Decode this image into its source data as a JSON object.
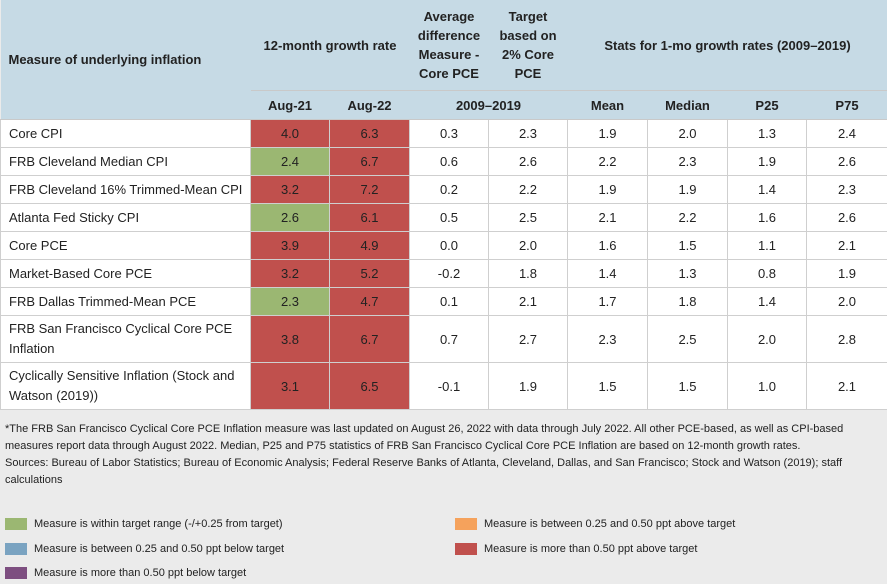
{
  "table": {
    "header": {
      "measure": "Measure of underlying inflation",
      "growth": "12-month growth rate",
      "avg_diff": "Average difference Measure - Core PCE",
      "target": "Target based on 2% Core PCE",
      "stats": "Stats for 1-mo growth rates (2009–2019)",
      "sub": [
        "Aug-21",
        "Aug-22",
        "2009–2019",
        "Mean",
        "Median",
        "P25",
        "P75"
      ]
    },
    "rows": [
      {
        "label": "Core CPI",
        "cells": [
          "4.0",
          "6.3",
          "0.3",
          "2.3",
          "1.9",
          "2.0",
          "1.3",
          "2.4"
        ],
        "colors": [
          "#c0504d",
          "#c0504d"
        ]
      },
      {
        "label": "FRB Cleveland Median CPI",
        "cells": [
          "2.4",
          "6.7",
          "0.6",
          "2.6",
          "2.2",
          "2.3",
          "1.9",
          "2.6"
        ],
        "colors": [
          "#9bb772",
          "#c0504d"
        ]
      },
      {
        "label": "FRB Cleveland 16% Trimmed-Mean CPI",
        "cells": [
          "3.2",
          "7.2",
          "0.2",
          "2.2",
          "1.9",
          "1.9",
          "1.4",
          "2.3"
        ],
        "colors": [
          "#c0504d",
          "#c0504d"
        ]
      },
      {
        "label": "Atlanta Fed Sticky CPI",
        "cells": [
          "2.6",
          "6.1",
          "0.5",
          "2.5",
          "2.1",
          "2.2",
          "1.6",
          "2.6"
        ],
        "colors": [
          "#9bb772",
          "#c0504d"
        ]
      },
      {
        "label": "Core PCE",
        "cells": [
          "3.9",
          "4.9",
          "0.0",
          "2.0",
          "1.6",
          "1.5",
          "1.1",
          "2.1"
        ],
        "colors": [
          "#c0504d",
          "#c0504d"
        ]
      },
      {
        "label": "Market-Based Core PCE",
        "cells": [
          "3.2",
          "5.2",
          "-0.2",
          "1.8",
          "1.4",
          "1.3",
          "0.8",
          "1.9"
        ],
        "colors": [
          "#c0504d",
          "#c0504d"
        ]
      },
      {
        "label": "FRB Dallas Trimmed-Mean PCE",
        "cells": [
          "2.3",
          "4.7",
          "0.1",
          "2.1",
          "1.7",
          "1.8",
          "1.4",
          "2.0"
        ],
        "colors": [
          "#9bb772",
          "#c0504d"
        ]
      },
      {
        "label": "FRB San Francisco Cyclical Core PCE Inflation",
        "cells": [
          "3.8",
          "6.7",
          "0.7",
          "2.7",
          "2.3",
          "2.5",
          "2.0",
          "2.8"
        ],
        "colors": [
          "#c0504d",
          "#c0504d"
        ]
      },
      {
        "label": "Cyclically Sensitive Inflation (Stock and Watson (2019))",
        "cells": [
          "3.1",
          "6.5",
          "-0.1",
          "1.9",
          "1.5",
          "1.5",
          "1.0",
          "2.1"
        ],
        "colors": [
          "#c0504d",
          "#c0504d"
        ]
      }
    ]
  },
  "notes": [
    "*The FRB San Francisco Cyclical Core PCE Inflation measure was last updated on August 26, 2022 with data through July 2022. All other PCE-based, as well as CPI-based measures report data through August 2022. Median, P25 and P75 statistics of FRB San Francisco Cyclical Core PCE Inflation are based on 12-month growth rates.",
    "Sources: Bureau of Labor Statistics; Bureau of Economic Analysis; Federal Reserve Banks of Atlanta, Cleveland, Dallas, and San Francisco; Stock and Watson (2019); staff calculations"
  ],
  "legend": [
    {
      "label": "Measure is within target range (-/+0.25 from target)",
      "color": "#9bb772"
    },
    {
      "label": "Measure is between 0.25 and 0.50 ppt below target",
      "color": "#7aa3c1"
    },
    {
      "label": "Measure is more than 0.50 ppt below target",
      "color": "#7d4e80"
    },
    {
      "label": "Measure is between 0.25 and 0.50 ppt above target",
      "color": "#f5a25c"
    },
    {
      "label": "Measure is more than 0.50 ppt above target",
      "color": "#c0504d"
    }
  ]
}
